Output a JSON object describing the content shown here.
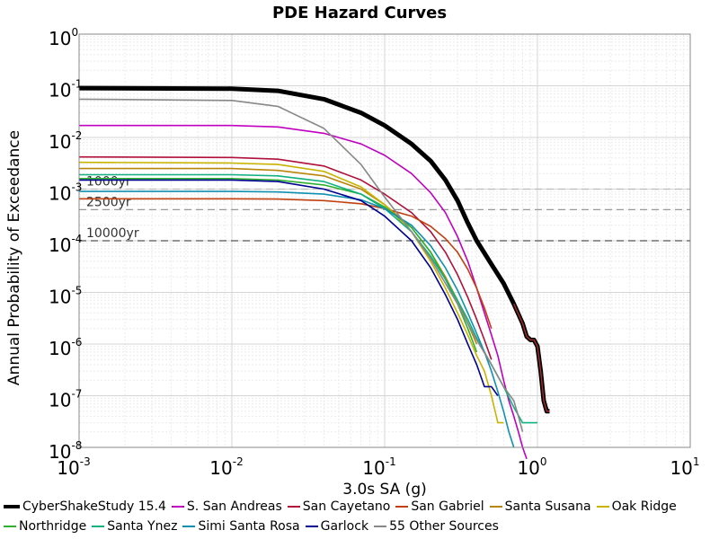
{
  "chart_data": {
    "type": "line",
    "title": "PDE Hazard Curves",
    "xlabel": "3.0s SA (g)",
    "ylabel": "Annual Probability of Exceedance",
    "xscale": "log",
    "yscale": "log",
    "xlim": [
      0.001,
      10
    ],
    "ylim": [
      1e-08,
      1
    ],
    "grid": true,
    "legend_position": "bottom",
    "x_ticks": [
      {
        "value": 0.001,
        "base": "10",
        "exp": "-3"
      },
      {
        "value": 0.01,
        "base": "10",
        "exp": "-2"
      },
      {
        "value": 0.1,
        "base": "10",
        "exp": "-1"
      },
      {
        "value": 1,
        "base": "10",
        "exp": "0"
      },
      {
        "value": 10,
        "base": "10",
        "exp": "1"
      }
    ],
    "y_ticks": [
      {
        "value": 1,
        "base": "10",
        "exp": "0"
      },
      {
        "value": 0.1,
        "base": "10",
        "exp": "-1"
      },
      {
        "value": 0.01,
        "base": "10",
        "exp": "-2"
      },
      {
        "value": 0.001,
        "base": "10",
        "exp": "-3"
      },
      {
        "value": 0.0001,
        "base": "10",
        "exp": "-4"
      },
      {
        "value": 1e-05,
        "base": "10",
        "exp": "-5"
      },
      {
        "value": 1e-06,
        "base": "10",
        "exp": "-6"
      },
      {
        "value": 1e-07,
        "base": "10",
        "exp": "-7"
      },
      {
        "value": 1e-08,
        "base": "10",
        "exp": "-8"
      }
    ],
    "reference_lines": [
      {
        "label": "1000yr",
        "value": 0.001,
        "color": "#bbbbbb"
      },
      {
        "label": "2500yr",
        "value": 0.0004,
        "color": "#999999"
      },
      {
        "label": "10000yr",
        "value": 0.0001,
        "color": "#555555"
      }
    ],
    "series": [
      {
        "name": "CyberShakeStudy 15.4",
        "color": "#000000",
        "highlight": "#a52a2a",
        "x": [
          0.001,
          0.01,
          0.02,
          0.04,
          0.07,
          0.1,
          0.15,
          0.2,
          0.25,
          0.3,
          0.35,
          0.4,
          0.5,
          0.6,
          0.7,
          0.8,
          0.85,
          0.9,
          0.95,
          1.0,
          1.05,
          1.1,
          1.15,
          1.2
        ],
        "y": [
          0.09,
          0.088,
          0.08,
          0.055,
          0.03,
          0.017,
          0.0075,
          0.0035,
          0.0015,
          0.0006,
          0.00022,
          0.0001,
          3.5e-05,
          1.5e-05,
          6e-06,
          2.5e-06,
          1.4e-06,
          1.2e-06,
          1.2e-06,
          9e-07,
          3e-07,
          8e-08,
          5e-08,
          5e-08
        ]
      },
      {
        "name": "S. San Andreas",
        "color": "#c000c0",
        "x": [
          0.001,
          0.01,
          0.02,
          0.04,
          0.07,
          0.1,
          0.15,
          0.2,
          0.25,
          0.3,
          0.35,
          0.4,
          0.45,
          0.5,
          0.55,
          0.6,
          0.65,
          0.7,
          0.75,
          0.8,
          0.85
        ],
        "y": [
          0.017,
          0.017,
          0.016,
          0.012,
          0.0075,
          0.0045,
          0.002,
          0.00085,
          0.00035,
          0.00012,
          4e-05,
          1.2e-05,
          4e-06,
          1.5e-06,
          6e-07,
          2e-07,
          8e-08,
          4e-08,
          2e-08,
          1e-08,
          6e-09
        ]
      },
      {
        "name": "San Cayetano",
        "color": "#b0103a",
        "x": [
          0.001,
          0.01,
          0.02,
          0.04,
          0.07,
          0.1,
          0.15,
          0.2,
          0.25,
          0.3,
          0.35,
          0.4,
          0.45,
          0.5
        ],
        "y": [
          0.0042,
          0.0041,
          0.0038,
          0.0028,
          0.0015,
          0.0008,
          0.00035,
          0.00015,
          6e-05,
          2.2e-05,
          8e-06,
          3e-06,
          1.2e-06,
          5e-07
        ]
      },
      {
        "name": "San Gabriel",
        "color": "#c04010",
        "x": [
          0.001,
          0.01,
          0.02,
          0.04,
          0.07,
          0.1,
          0.15,
          0.2,
          0.25,
          0.3,
          0.35,
          0.4,
          0.45,
          0.5
        ],
        "y": [
          0.00065,
          0.00065,
          0.00064,
          0.0006,
          0.00052,
          0.00042,
          0.0003,
          0.00019,
          0.00011,
          6e-05,
          2.8e-05,
          1.2e-05,
          5e-06,
          2e-06
        ]
      },
      {
        "name": "Santa Susana",
        "color": "#b8860b",
        "x": [
          0.001,
          0.01,
          0.02,
          0.04,
          0.07,
          0.1,
          0.15,
          0.2,
          0.25,
          0.3,
          0.35,
          0.4
        ],
        "y": [
          0.0025,
          0.0025,
          0.0023,
          0.0018,
          0.001,
          0.0005,
          0.00018,
          6e-05,
          2e-05,
          7e-06,
          2.5e-06,
          1e-06
        ]
      },
      {
        "name": "Oak Ridge",
        "color": "#c8b400",
        "x": [
          0.001,
          0.01,
          0.02,
          0.04,
          0.07,
          0.1,
          0.15,
          0.2,
          0.25,
          0.3,
          0.35,
          0.4,
          0.45,
          0.5,
          0.55,
          0.6
        ],
        "y": [
          0.0033,
          0.0032,
          0.003,
          0.0022,
          0.0011,
          0.0005,
          0.00015,
          4e-05,
          1.2e-05,
          4e-06,
          1.5e-06,
          6e-07,
          3e-07,
          1e-07,
          3e-08,
          3e-08
        ]
      },
      {
        "name": "Northridge",
        "color": "#30b030",
        "x": [
          0.001,
          0.01,
          0.02,
          0.04,
          0.07,
          0.1,
          0.15,
          0.2,
          0.25,
          0.3,
          0.35,
          0.4
        ],
        "y": [
          0.0016,
          0.0016,
          0.0015,
          0.0012,
          0.0008,
          0.00045,
          0.00018,
          6e-05,
          1.8e-05,
          6e-06,
          2e-06,
          7e-07
        ]
      },
      {
        "name": "Santa Ynez",
        "color": "#10b080",
        "x": [
          0.001,
          0.01,
          0.02,
          0.04,
          0.07,
          0.1,
          0.15,
          0.2,
          0.25,
          0.3,
          0.35,
          0.4,
          0.5,
          0.6,
          0.7,
          0.8,
          0.9,
          1.0
        ],
        "y": [
          0.0019,
          0.0019,
          0.0018,
          0.0014,
          0.0008,
          0.00042,
          0.00015,
          5e-05,
          1.8e-05,
          7e-06,
          3e-06,
          1.3e-06,
          4e-07,
          1.5e-07,
          6e-08,
          3e-08,
          3e-08,
          3e-08
        ]
      },
      {
        "name": "Simi Santa Rosa",
        "color": "#1090b0",
        "x": [
          0.001,
          0.01,
          0.02,
          0.04,
          0.07,
          0.1,
          0.15,
          0.2,
          0.25,
          0.3,
          0.35,
          0.4,
          0.45,
          0.5,
          0.55,
          0.6,
          0.65,
          0.7
        ],
        "y": [
          0.0009,
          0.0009,
          0.00088,
          0.0008,
          0.00062,
          0.00042,
          0.0002,
          8e-05,
          3e-05,
          1.1e-05,
          4e-06,
          1.6e-06,
          7e-07,
          3e-07,
          1.2e-07,
          5e-08,
          2e-08,
          1e-08
        ]
      },
      {
        "name": "Garlock",
        "color": "#000090",
        "x": [
          0.001,
          0.01,
          0.02,
          0.04,
          0.07,
          0.1,
          0.15,
          0.2,
          0.25,
          0.3,
          0.35,
          0.4,
          0.45,
          0.5,
          0.55
        ],
        "y": [
          0.0015,
          0.0015,
          0.0014,
          0.001,
          0.0006,
          0.0003,
          0.0001,
          3e-05,
          9e-06,
          3e-06,
          1e-06,
          4e-07,
          1.5e-07,
          1.5e-07,
          1e-07
        ]
      },
      {
        "name": "55 Other Sources",
        "color": "#888888",
        "x": [
          0.001,
          0.01,
          0.02,
          0.04,
          0.07,
          0.1,
          0.15,
          0.2,
          0.25,
          0.3,
          0.35,
          0.4,
          0.5,
          0.6,
          0.7,
          0.75,
          0.8
        ],
        "y": [
          0.055,
          0.052,
          0.04,
          0.015,
          0.003,
          0.0007,
          0.00015,
          4.5e-05,
          1.5e-05,
          6e-06,
          2.5e-06,
          1.2e-06,
          4e-07,
          1.5e-07,
          8e-08,
          4e-08,
          2e-08
        ]
      }
    ]
  }
}
